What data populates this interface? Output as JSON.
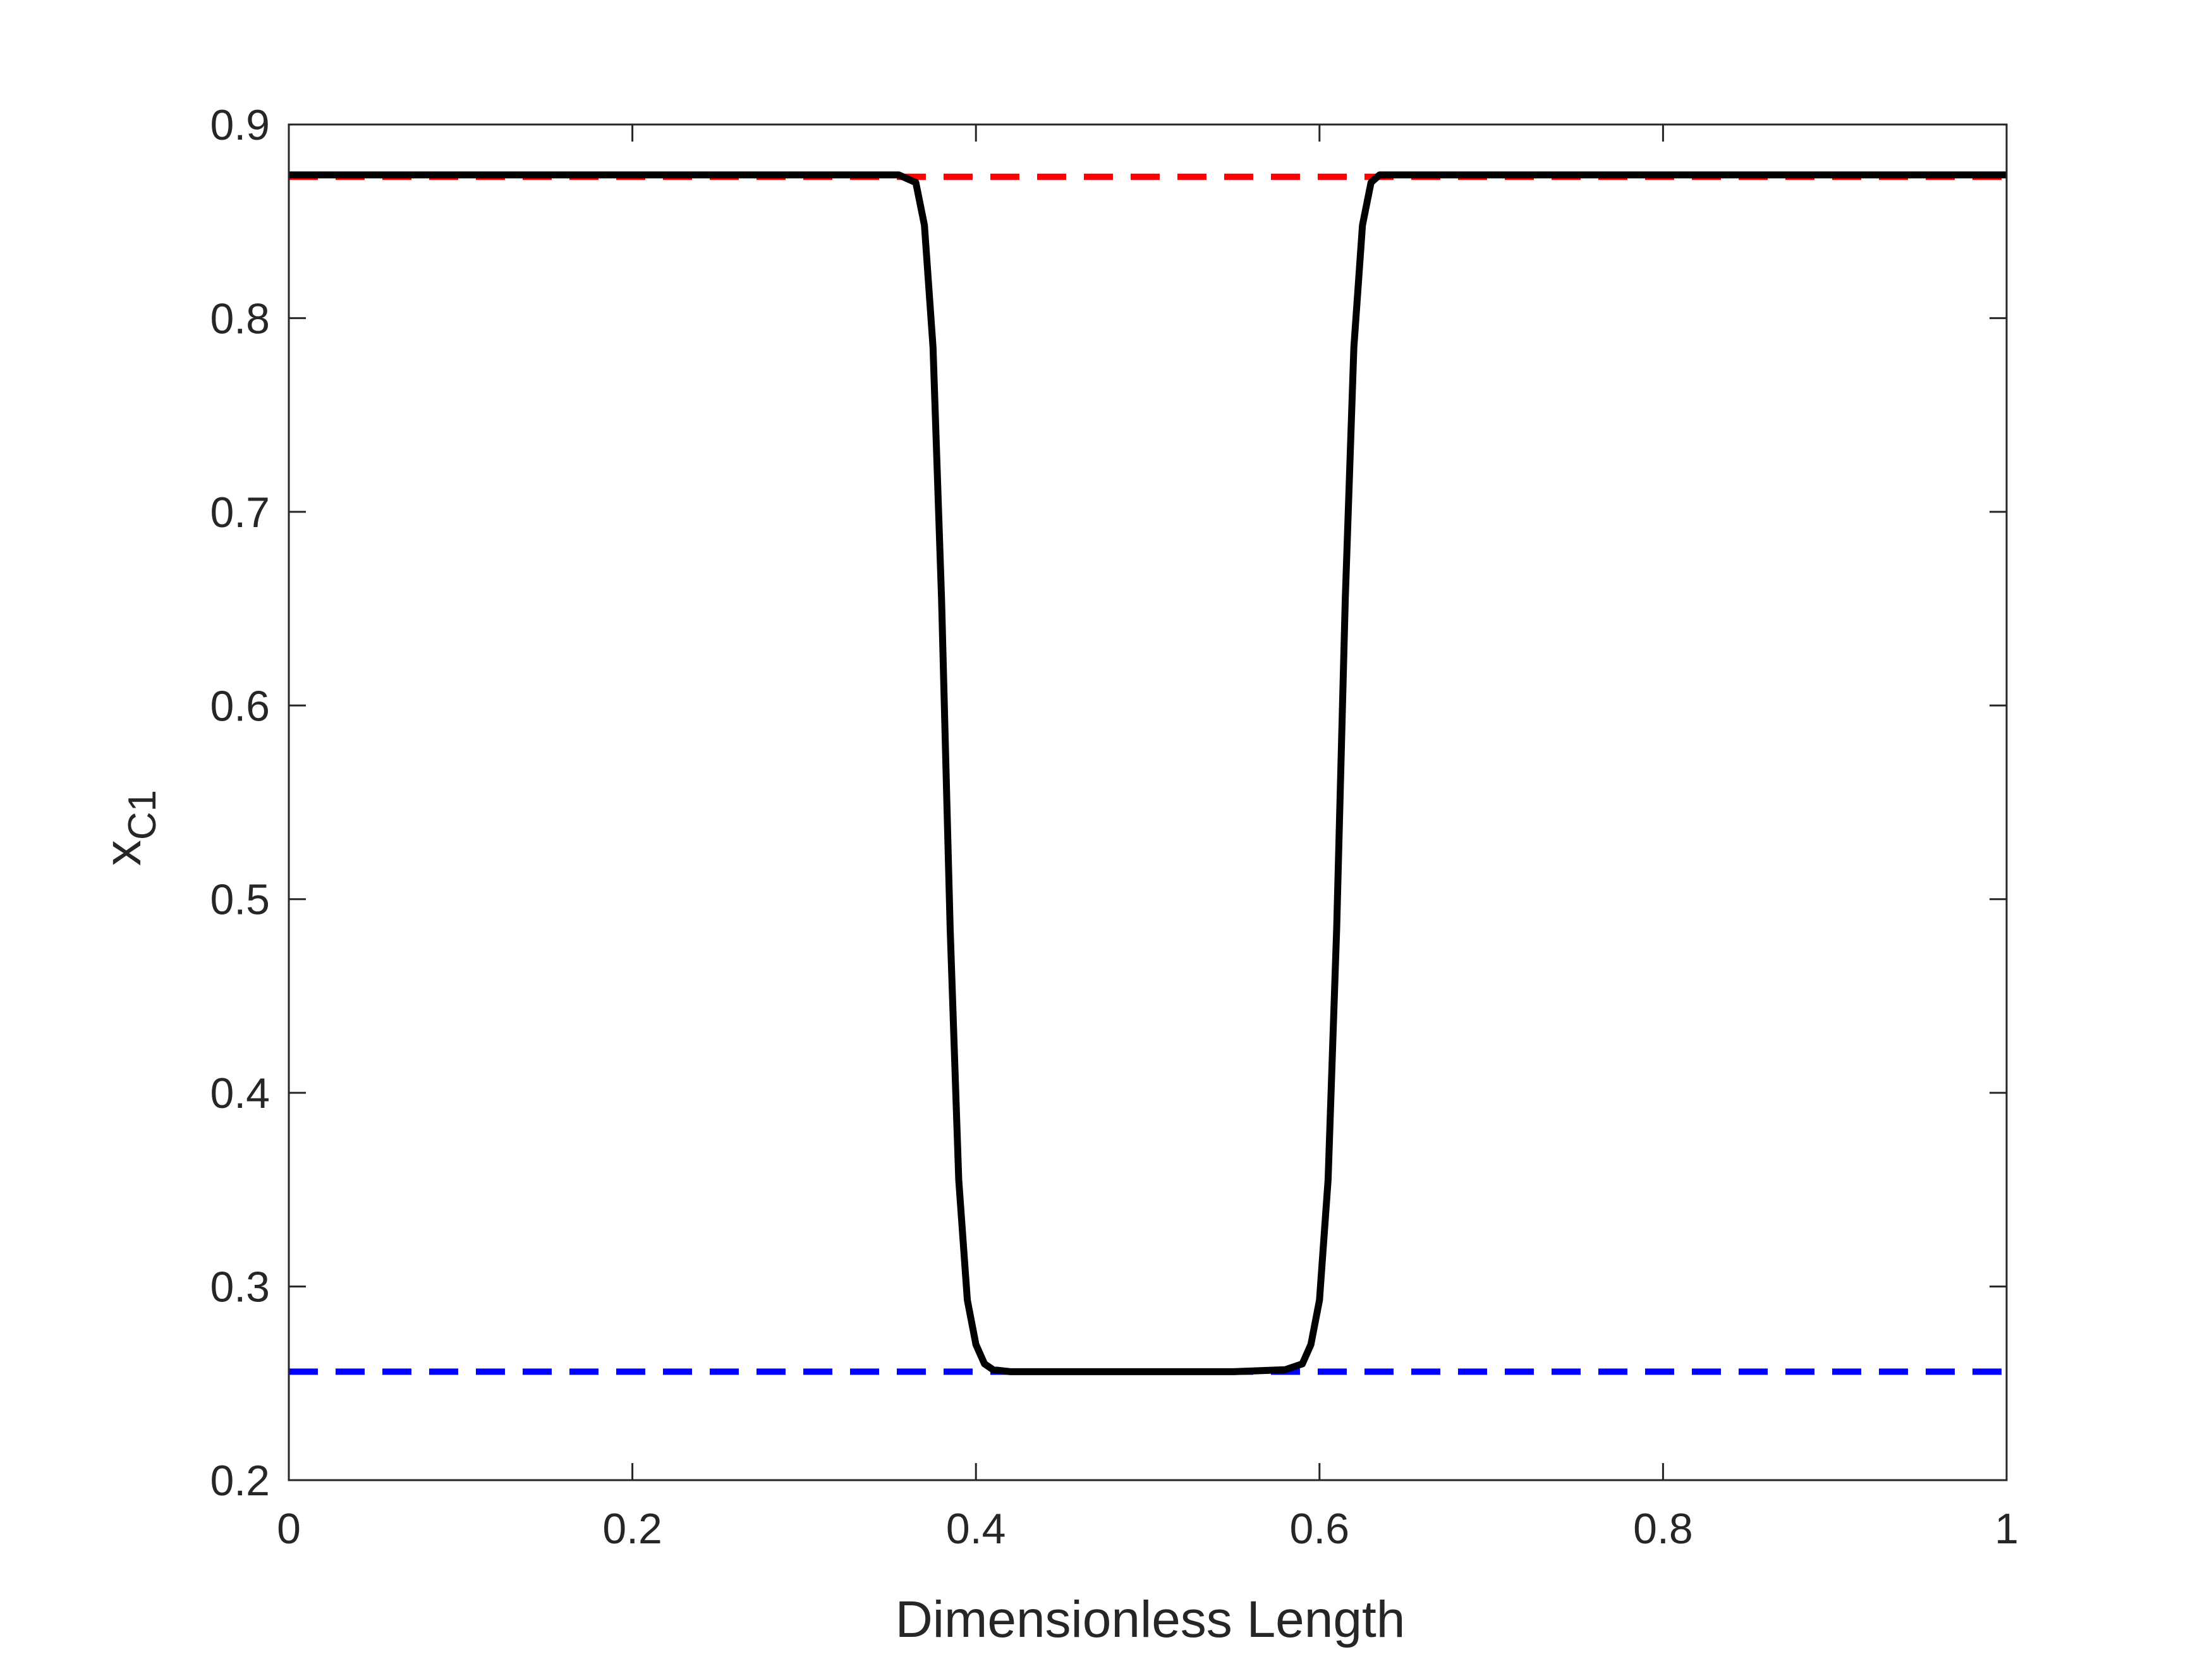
{
  "chart_data": {
    "type": "line",
    "title": "",
    "xlabel": "Dimensionless Length",
    "ylabel_main": "x",
    "ylabel_sub": "C1",
    "xlim": [
      0,
      1
    ],
    "ylim": [
      0.2,
      0.9
    ],
    "x_ticks": [
      0,
      0.2,
      0.4,
      0.6,
      0.8,
      1
    ],
    "x_tick_labels": [
      "0",
      "0.2",
      "0.4",
      "0.6",
      "0.8",
      "1"
    ],
    "y_ticks": [
      0.2,
      0.3,
      0.4,
      0.5,
      0.6,
      0.7,
      0.8,
      0.9
    ],
    "y_tick_labels": [
      "0.2",
      "0.3",
      "0.4",
      "0.5",
      "0.6",
      "0.7",
      "0.8",
      "0.9"
    ],
    "grid": false,
    "legend": "none",
    "series": [
      {
        "color": "#000000",
        "style": "solid",
        "x": [
          0,
          0.1,
          0.2,
          0.3,
          0.355,
          0.365,
          0.37,
          0.375,
          0.38,
          0.385,
          0.39,
          0.395,
          0.4,
          0.405,
          0.41,
          0.42,
          0.45,
          0.5,
          0.55,
          0.58,
          0.59,
          0.595,
          0.6,
          0.605,
          0.61,
          0.615,
          0.62,
          0.625,
          0.63,
          0.635,
          0.645,
          0.7,
          0.8,
          0.9,
          1
        ],
        "y": [
          0.874,
          0.874,
          0.874,
          0.874,
          0.874,
          0.87,
          0.848,
          0.785,
          0.655,
          0.485,
          0.355,
          0.293,
          0.27,
          0.26,
          0.257,
          0.256,
          0.256,
          0.256,
          0.256,
          0.257,
          0.26,
          0.27,
          0.293,
          0.355,
          0.485,
          0.655,
          0.785,
          0.848,
          0.87,
          0.874,
          0.874,
          0.874,
          0.874,
          0.874,
          0.874
        ]
      },
      {
        "color": "#ff0000",
        "style": "dashed",
        "x": [
          0,
          1
        ],
        "y": [
          0.873,
          0.873
        ]
      },
      {
        "color": "#0000ff",
        "style": "dashed",
        "x": [
          0,
          1
        ],
        "y": [
          0.256,
          0.256
        ]
      }
    ]
  }
}
